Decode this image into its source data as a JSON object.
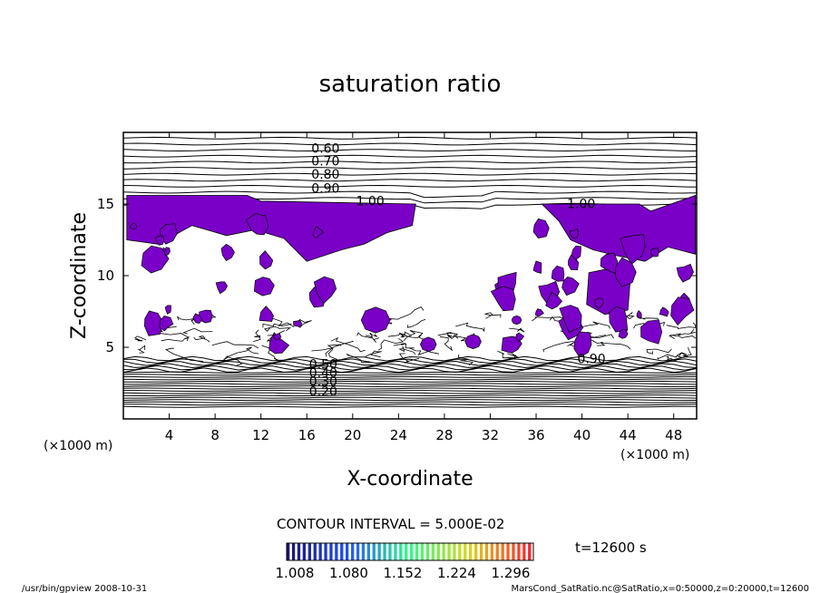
{
  "chart_data": {
    "type": "contour",
    "title": "saturation ratio",
    "xlabel": "X-coordinate",
    "ylabel": "Z-coordinate",
    "x_unit": "(×1000 m)",
    "y_unit": "(×1000 m)",
    "xlim": [
      0,
      50
    ],
    "ylim": [
      0,
      20
    ],
    "x_ticks": [
      4,
      8,
      12,
      16,
      20,
      24,
      28,
      32,
      36,
      40,
      44,
      48
    ],
    "y_ticks": [
      5,
      10,
      15
    ],
    "contour_interval": "CONTOUR INTERVAL = 5.000E-02",
    "contour_labels_upper": [
      "0.60",
      "0.70",
      "0.80",
      "0.90",
      "1.00"
    ],
    "contour_labels_lower": [
      "0.90",
      "0.50",
      "0.40",
      "0.30",
      "0.20"
    ],
    "shaded_region_label": "1.00",
    "colorbar_ticks": [
      "1.008",
      "1.080",
      "1.152",
      "1.224",
      "1.296"
    ],
    "time_label": "t=12600 s",
    "fill_color": "#7a00c8",
    "grid": false
  },
  "footer": {
    "left": "/usr/bin/gpview   2008-10-31",
    "right": "MarsCond_SatRatio.nc@SatRatio,x=0:50000,z=0:20000,t=12600"
  }
}
